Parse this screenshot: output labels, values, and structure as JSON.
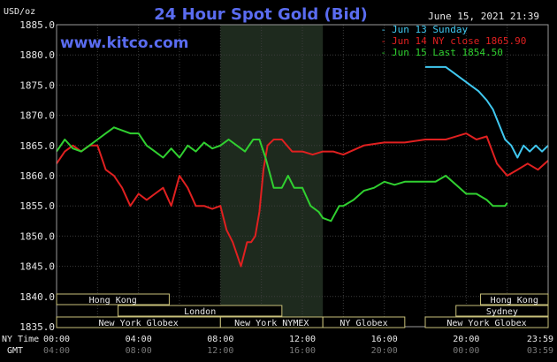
{
  "chart_data": {
    "type": "line",
    "title": "24 Hour Spot Gold (Bid)",
    "ylabel": "USD/oz",
    "watermark": "www.kitco.com",
    "timestamp": "June 15, 2021 21:39",
    "ylim": [
      1835.0,
      1885.0
    ],
    "yticks": [
      "1885.0",
      "1880.0",
      "1875.0",
      "1870.0",
      "1865.0",
      "1860.0",
      "1855.0",
      "1850.0",
      "1845.0",
      "1840.0",
      "1835.0"
    ],
    "x_axis_hours": [
      0,
      24
    ],
    "ny_time_label": "NY Time",
    "gmt_label": "GMT",
    "ny_ticks": [
      "00:00",
      "04:00",
      "08:00",
      "12:00",
      "16:00",
      "20:00",
      "23:59"
    ],
    "gmt_ticks": [
      "04:00",
      "08:00",
      "12:00",
      "16:00",
      "20:00",
      "00:00",
      "03:59"
    ],
    "shaded_region_hours": [
      8,
      13
    ],
    "series": [
      {
        "name": "Jun 13 Sunday",
        "color": "#40c8f0",
        "x": [
          18.0,
          19.0,
          19.2,
          19.8,
          20.2,
          20.6,
          21.0,
          21.3,
          21.6,
          21.9,
          22.2,
          22.5,
          22.8,
          23.1,
          23.4,
          23.7,
          24.0
        ],
        "y": [
          1878.0,
          1878.0,
          1877.5,
          1876.0,
          1875.0,
          1874.0,
          1872.5,
          1871.0,
          1868.5,
          1866.0,
          1865.0,
          1863.0,
          1865.0,
          1864.0,
          1865.0,
          1864.0,
          1865.0
        ]
      },
      {
        "name": "Jun 14 NY close 1865.90",
        "color": "#e02020",
        "x": [
          0.0,
          0.4,
          0.8,
          1.2,
          1.6,
          2.0,
          2.4,
          2.8,
          3.2,
          3.6,
          4.0,
          4.4,
          4.8,
          5.2,
          5.6,
          6.0,
          6.4,
          6.8,
          7.2,
          7.6,
          8.0,
          8.3,
          8.6,
          8.8,
          9.0,
          9.3,
          9.5,
          9.7,
          9.9,
          10.1,
          10.3,
          10.6,
          11.0,
          11.5,
          12.0,
          12.5,
          13.0,
          13.5,
          14.0,
          15.0,
          16.0,
          17.0,
          18.0,
          19.0,
          20.0,
          20.5,
          21.0,
          21.5,
          22.0,
          22.5,
          23.0,
          23.5,
          24.0
        ],
        "y": [
          1862.0,
          1864.0,
          1865.0,
          1864.0,
          1865.0,
          1865.0,
          1861.0,
          1860.0,
          1858.0,
          1855.0,
          1857.0,
          1856.0,
          1857.0,
          1858.0,
          1855.0,
          1860.0,
          1858.0,
          1855.0,
          1855.0,
          1854.5,
          1855.0,
          1851.0,
          1849.0,
          1847.0,
          1845.0,
          1849.0,
          1849.0,
          1850.0,
          1854.0,
          1861.0,
          1865.0,
          1866.0,
          1866.0,
          1864.0,
          1864.0,
          1863.5,
          1864.0,
          1864.0,
          1863.5,
          1865.0,
          1865.5,
          1865.5,
          1866.0,
          1866.0,
          1867.0,
          1866.0,
          1866.5,
          1862.0,
          1860.0,
          1861.0,
          1862.0,
          1861.0,
          1862.5
        ]
      },
      {
        "name": "Jun 15 Last 1854.50",
        "color": "#30d030",
        "x": [
          0.0,
          0.4,
          0.8,
          1.2,
          1.6,
          2.0,
          2.4,
          2.8,
          3.2,
          3.6,
          4.0,
          4.4,
          4.8,
          5.2,
          5.6,
          6.0,
          6.4,
          6.8,
          7.2,
          7.6,
          8.0,
          8.4,
          8.8,
          9.2,
          9.6,
          9.9,
          10.2,
          10.6,
          11.0,
          11.3,
          11.6,
          12.0,
          12.4,
          12.8,
          13.0,
          13.4,
          13.8,
          14.0,
          14.5,
          15.0,
          15.5,
          16.0,
          16.5,
          17.0,
          17.5,
          18.0,
          18.5,
          19.0,
          19.5,
          20.0,
          20.5,
          21.0,
          21.3,
          21.6,
          21.9,
          22.0
        ],
        "y": [
          1864.0,
          1866.0,
          1864.5,
          1864.0,
          1865.0,
          1866.0,
          1867.0,
          1868.0,
          1867.5,
          1867.0,
          1867.0,
          1865.0,
          1864.0,
          1863.0,
          1864.5,
          1863.0,
          1865.0,
          1864.0,
          1865.5,
          1864.5,
          1865.0,
          1866.0,
          1865.0,
          1864.0,
          1866.0,
          1866.0,
          1863.0,
          1858.0,
          1858.0,
          1860.0,
          1858.0,
          1858.0,
          1855.0,
          1854.0,
          1853.0,
          1852.5,
          1855.0,
          1855.0,
          1856.0,
          1857.5,
          1858.0,
          1859.0,
          1858.5,
          1859.0,
          1859.0,
          1859.0,
          1859.0,
          1860.0,
          1858.5,
          1857.0,
          1857.0,
          1856.0,
          1855.0,
          1855.0,
          1855.0,
          1855.5
        ]
      }
    ]
  },
  "sessions": {
    "row1": [
      {
        "label": "Hong Kong",
        "start": 0,
        "end": 5.5
      },
      {
        "label": "Hong Kong",
        "start": 20.7,
        "end": 24
      }
    ],
    "row2": [
      {
        "label": "London",
        "start": 3,
        "end": 11
      },
      {
        "label": "Sydney",
        "start": 19.5,
        "end": 24
      }
    ],
    "row3": [
      {
        "label": "New York Globex",
        "start": 0,
        "end": 8
      },
      {
        "label": "New York NYMEX",
        "start": 8,
        "end": 13
      },
      {
        "label": "NY Globex",
        "start": 13,
        "end": 17
      },
      {
        "label": "New York Globex",
        "start": 18,
        "end": 24
      }
    ]
  }
}
